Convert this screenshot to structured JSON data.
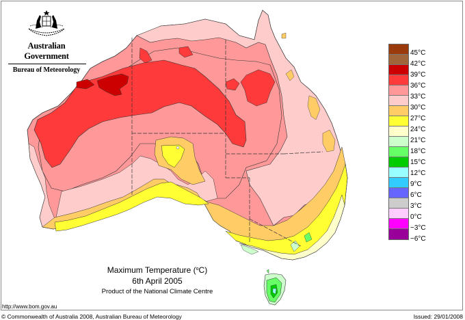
{
  "header": {
    "government": "Australian Government",
    "bureau": "Bureau of Meteorology",
    "logo_icon": "coat-of-arms-icon"
  },
  "title": {
    "line1": "Maximum Temperature (°C)",
    "line1_main": "Maximum Temperature (",
    "line1_degree": "o",
    "line1_unit": "C)",
    "date": "6th April 2005",
    "product": "Product of the National Climate Centre"
  },
  "footer": {
    "url": "http://www.bom.gov.au",
    "copyright": "© Commonwealth of Australia 2008, Australian Bureau of Meteorology",
    "issued": "Issued: 29/01/2008"
  },
  "legend": {
    "swatches": [
      {
        "color": "#9b3a0a",
        "label": ""
      },
      {
        "color": "#a0663a",
        "label": "45°C"
      },
      {
        "color": "#cc0000",
        "label": "42°C"
      },
      {
        "color": "#ff3a3a",
        "label": "39°C"
      },
      {
        "color": "#ff9999",
        "label": "36°C"
      },
      {
        "color": "#ffcccc",
        "label": "33°C"
      },
      {
        "color": "#ffcc66",
        "label": "30°C"
      },
      {
        "color": "#ffff33",
        "label": "27°C"
      },
      {
        "color": "#ffffcc",
        "label": "24°C"
      },
      {
        "color": "#ccffcc",
        "label": "21°C"
      },
      {
        "color": "#66ff66",
        "label": "18°C"
      },
      {
        "color": "#00cc00",
        "label": "15°C"
      },
      {
        "color": "#99ffff",
        "label": "12°C"
      },
      {
        "color": "#33ccff",
        "label": "9°C"
      },
      {
        "color": "#6666ff",
        "label": "6°C"
      },
      {
        "color": "#cccccc",
        "label": "3°C"
      },
      {
        "color": "#ffccff",
        "label": "0°C"
      },
      {
        "color": "#ff00ff",
        "label": "-3°C"
      },
      {
        "color": "#990099",
        "label": "-6°C"
      }
    ],
    "labels": [
      "45°C",
      "42°C",
      "39°C",
      "36°C",
      "33°C",
      "30°C",
      "27°C",
      "24°C",
      "21°C",
      "18°C",
      "15°C",
      "12°C",
      "9°C",
      "6°C",
      "3°C",
      "0°C",
      "−3°C",
      "−6°C"
    ]
  },
  "colors": {
    "c42": "#cc0000",
    "c39": "#ff3a3a",
    "c36": "#ff9999",
    "c33": "#ffcccc",
    "c30": "#ffcc66",
    "c27": "#ffff33",
    "c24": "#ffffcc",
    "c21": "#ccffcc",
    "c18": "#66ff66",
    "c15": "#00cc00",
    "c12": "#99ffff"
  }
}
